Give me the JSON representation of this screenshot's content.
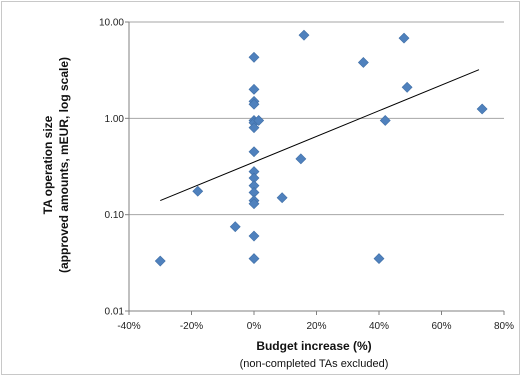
{
  "chart_data": {
    "type": "scatter",
    "xlabel": "Budget increase (%)",
    "xlabel_note": "(non-completed TAs excluded)",
    "ylabel": "TA operation size",
    "ylabel_note": "(approved amounts, mEUR, log scale)",
    "x_range": [
      -40,
      80
    ],
    "y_range": [
      0.01,
      10
    ],
    "y_scale": "log",
    "x_ticks": [
      -40,
      -20,
      0,
      20,
      40,
      60,
      80
    ],
    "x_tick_labels": [
      "-40%",
      "-20%",
      "0%",
      "20%",
      "40%",
      "60%",
      "80%"
    ],
    "y_ticks": [
      0.01,
      0.1,
      1,
      10
    ],
    "y_tick_labels": [
      "0.01",
      "0.10",
      "1.00",
      "10.00"
    ],
    "grid": "horizontal major gridlines",
    "marker": "diamond",
    "marker_color": "#4F81BD",
    "trendline_color": "#000000",
    "points": [
      {
        "x": -30,
        "y": 0.033
      },
      {
        "x": -18,
        "y": 0.175
      },
      {
        "x": -6,
        "y": 0.075
      },
      {
        "x": 0,
        "y": 4.3
      },
      {
        "x": 0,
        "y": 2.0
      },
      {
        "x": 0,
        "y": 1.5
      },
      {
        "x": 0,
        "y": 1.4
      },
      {
        "x": 0,
        "y": 0.95
      },
      {
        "x": 0,
        "y": 0.9
      },
      {
        "x": 0,
        "y": 0.8
      },
      {
        "x": 0,
        "y": 0.45
      },
      {
        "x": 0,
        "y": 0.28
      },
      {
        "x": 0,
        "y": 0.24
      },
      {
        "x": 0,
        "y": 0.2
      },
      {
        "x": 0,
        "y": 0.17
      },
      {
        "x": 0,
        "y": 0.14
      },
      {
        "x": 0,
        "y": 0.13
      },
      {
        "x": 0,
        "y": 0.06
      },
      {
        "x": 0,
        "y": 0.035
      },
      {
        "x": 1.5,
        "y": 0.95
      },
      {
        "x": 9,
        "y": 0.15
      },
      {
        "x": 15,
        "y": 0.38
      },
      {
        "x": 16,
        "y": 7.3
      },
      {
        "x": 35,
        "y": 3.8
      },
      {
        "x": 40,
        "y": 0.035
      },
      {
        "x": 42,
        "y": 0.95
      },
      {
        "x": 48,
        "y": 6.8
      },
      {
        "x": 49,
        "y": 2.1
      },
      {
        "x": 73,
        "y": 1.25
      }
    ],
    "trendline": [
      {
        "x": -30,
        "y": 0.14
      },
      {
        "x": 72,
        "y": 3.2
      }
    ]
  }
}
